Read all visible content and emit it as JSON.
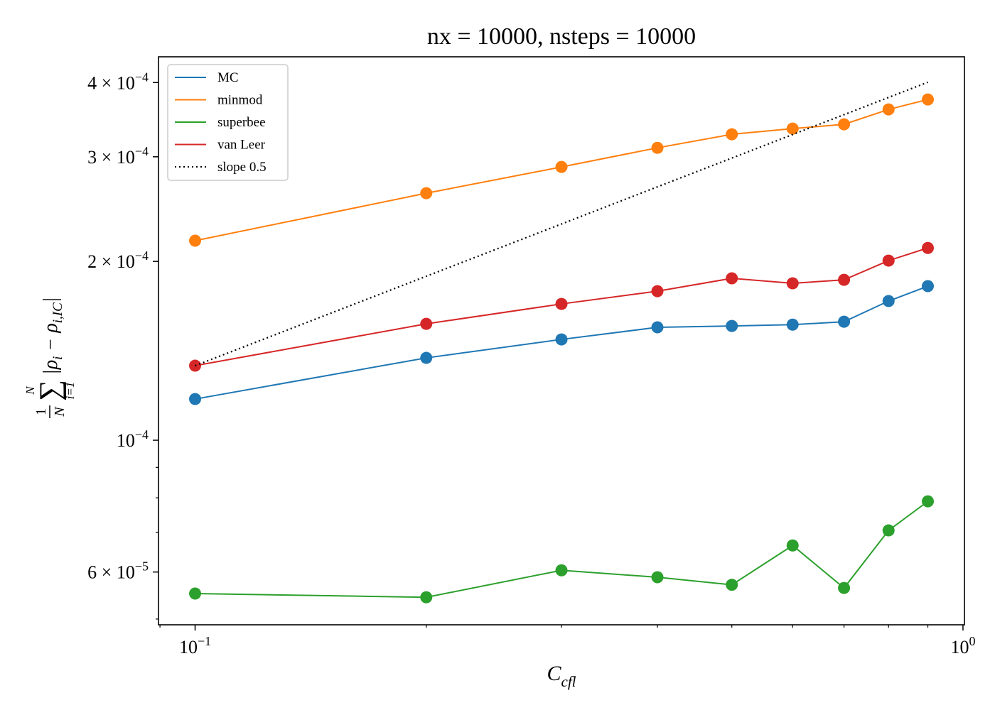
{
  "chart_data": {
    "type": "line",
    "title": "nx = 10000, nsteps = 10000",
    "x_label": {
      "text": "C",
      "sub": "cfl"
    },
    "y_label": {
      "frac_num": "1",
      "frac_den": "N",
      "sum": "∑",
      "sum_upper": "N",
      "sum_lower": "i=1",
      "open": "|ρ",
      "sub1": "i",
      "mid": " − ρ",
      "sub2": "i,IC",
      "close": "|"
    },
    "x": [
      0.1,
      0.2,
      0.3,
      0.4,
      0.5,
      0.6,
      0.7,
      0.8,
      0.9
    ],
    "series": [
      {
        "name": "MC",
        "color": "#1f77b4",
        "linestyle": "solid",
        "markers": true,
        "values": [
          0.0001173,
          0.0001376,
          0.0001478,
          0.0001549,
          0.0001557,
          0.0001565,
          0.0001583,
          0.0001715,
          0.0001817
        ]
      },
      {
        "name": "minmod",
        "color": "#ff7f0e",
        "linestyle": "solid",
        "markers": true,
        "values": [
          0.0002167,
          0.0002605,
          0.0002884,
          0.0003106,
          0.0003273,
          0.0003346,
          0.0003402,
          0.0003604,
          0.0003746
        ]
      },
      {
        "name": "superbee",
        "color": "#2ca02c",
        "linestyle": "solid",
        "markers": true,
        "values": [
          5.52e-05,
          5.44e-05,
          6.04e-05,
          5.88e-05,
          5.71e-05,
          6.65e-05,
          5.64e-05,
          7.05e-05,
          7.89e-05
        ]
      },
      {
        "name": "van Leer",
        "color": "#d62728",
        "linestyle": "solid",
        "markers": true,
        "values": [
          0.0001335,
          0.000157,
          0.0001696,
          0.0001782,
          0.0001873,
          0.0001837,
          0.0001862,
          0.0002006,
          0.0002107
        ]
      },
      {
        "name": "slope 0.5",
        "color": "#000000",
        "linestyle": "dotted",
        "markers": false,
        "values": [
          0.0001335,
          0.0001888,
          0.0002312,
          0.000267,
          0.0002985,
          0.000327,
          0.0003532,
          0.0003776,
          0.0004005
        ]
      }
    ],
    "xscale": "log",
    "yscale": "log",
    "xlim": [
      0.0896,
      1.0044
    ],
    "ylim": [
      4.89e-05,
      0.000442
    ],
    "xticks": [
      {
        "value": 0.1,
        "label": "10",
        "exponent": "−1"
      },
      {
        "value": 1,
        "label": "10",
        "exponent": "0"
      }
    ],
    "xminorticks": [
      0.09,
      0.2,
      0.3,
      0.4,
      0.5,
      0.6,
      0.7,
      0.8,
      0.9
    ],
    "yticks": [
      {
        "value": 6e-05,
        "label": "6 × 10",
        "exponent": "−5"
      },
      {
        "value": 0.0001,
        "label": "10",
        "exponent": "−4"
      },
      {
        "value": 0.0002,
        "label": "2 × 10",
        "exponent": "−4"
      },
      {
        "value": 0.0003,
        "label": "3 × 10",
        "exponent": "−4"
      },
      {
        "value": 0.0004,
        "label": "4 × 10",
        "exponent": "−4"
      }
    ],
    "yminorticks": [
      5e-05,
      7e-05,
      8e-05,
      9e-05
    ],
    "grid": false,
    "legend": "upper left"
  }
}
